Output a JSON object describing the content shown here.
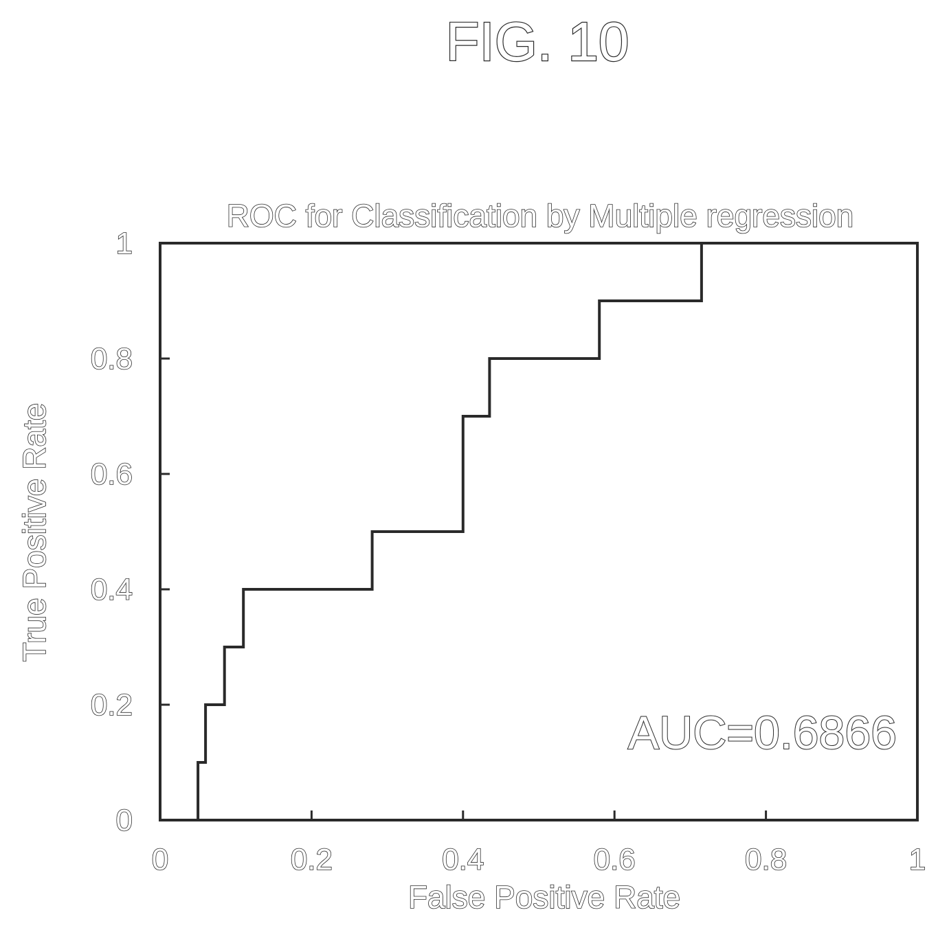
{
  "figure_label": "FIG. 10",
  "chart_data": {
    "type": "line",
    "title": "ROC for Classification by Multiple regression",
    "xlabel": "False Positive Rate",
    "ylabel": "True Positive Rate",
    "xlim": [
      0,
      1
    ],
    "ylim": [
      0,
      1
    ],
    "x_ticks": [
      "0",
      "0.2",
      "0.4",
      "0.6",
      "0.8",
      "1"
    ],
    "y_ticks": [
      "0",
      "0.2",
      "0.4",
      "0.6",
      "0.8",
      "1"
    ],
    "grid": false,
    "annotation": "AUC=0.6866",
    "series": [
      {
        "step": true,
        "x": [
          0.0,
          0.05,
          0.05,
          0.06,
          0.06,
          0.085,
          0.085,
          0.11,
          0.11,
          0.28,
          0.28,
          0.4,
          0.4,
          0.435,
          0.435,
          0.58,
          0.58,
          0.715,
          0.715,
          1.0
        ],
        "y": [
          0.0,
          0.0,
          0.1,
          0.1,
          0.2,
          0.2,
          0.3,
          0.3,
          0.4,
          0.4,
          0.5,
          0.5,
          0.7,
          0.7,
          0.8,
          0.8,
          0.9,
          0.9,
          1.0,
          1.0
        ]
      }
    ]
  }
}
